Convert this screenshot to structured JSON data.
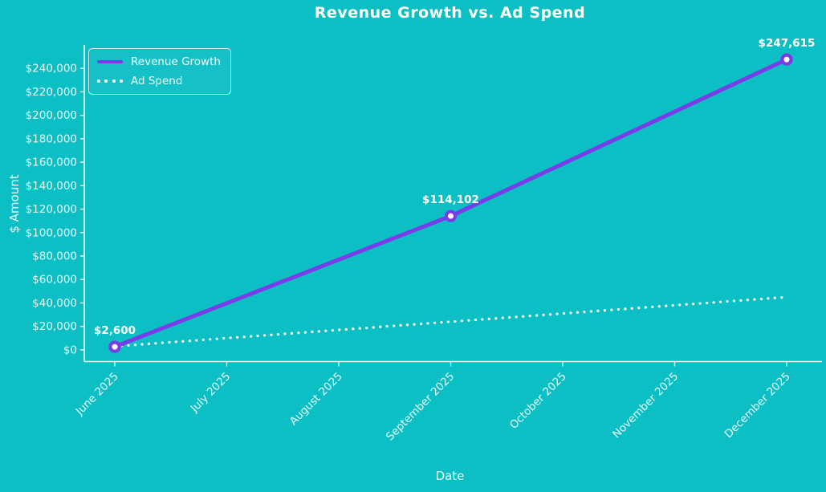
{
  "title": "Revenue Growth vs. Ad Spend",
  "colors": {
    "background": "#0cbfc5",
    "revenue_line": "#7a3be8",
    "ad_spend_line": "#ffffff",
    "axis": "#e8fbfb",
    "tick_text": "#e6fafa",
    "annotation_text": "#ffffff",
    "title_text": "#ffffff"
  },
  "chart_data": {
    "type": "line",
    "title": "Revenue Growth vs. Ad Spend",
    "xlabel": "Date",
    "ylabel": "$ Amount",
    "categories": [
      "June 2025",
      "July 2025",
      "August 2025",
      "September 2025",
      "October 2025",
      "November 2025",
      "December 2025"
    ],
    "ylim": [
      -10000,
      260000
    ],
    "grid": false,
    "legend_position": "upper left",
    "yticks": [
      {
        "value": 0,
        "label": "$0"
      },
      {
        "value": 20000,
        "label": "$20,000"
      },
      {
        "value": 40000,
        "label": "$40,000"
      },
      {
        "value": 60000,
        "label": "$60,000"
      },
      {
        "value": 80000,
        "label": "$80,000"
      },
      {
        "value": 100000,
        "label": "$100,000"
      },
      {
        "value": 120000,
        "label": "$120,000"
      },
      {
        "value": 140000,
        "label": "$140,000"
      },
      {
        "value": 160000,
        "label": "$160,000"
      },
      {
        "value": 180000,
        "label": "$180,000"
      },
      {
        "value": 200000,
        "label": "$200,000"
      },
      {
        "value": 220000,
        "label": "$220,000"
      },
      {
        "value": 240000,
        "label": "$240,000"
      }
    ],
    "series": [
      {
        "name": "Revenue Growth",
        "style": "solid",
        "color": "#7a3be8",
        "markers": true,
        "x": [
          0,
          3,
          6
        ],
        "values": [
          2600,
          114102,
          247615
        ],
        "annotations": [
          {
            "x": 0,
            "value": 2600,
            "text": "$2,600"
          },
          {
            "x": 3,
            "value": 114102,
            "text": "$114,102"
          },
          {
            "x": 6,
            "value": 247615,
            "text": "$247,615"
          }
        ]
      },
      {
        "name": "Ad Spend",
        "style": "dotted",
        "color": "#ffffff",
        "markers": false,
        "x": [
          0,
          1,
          2,
          3,
          4,
          5,
          6
        ],
        "values": [
          3000,
          10000,
          17000,
          24000,
          31000,
          38000,
          45000
        ],
        "annotations": []
      }
    ]
  }
}
